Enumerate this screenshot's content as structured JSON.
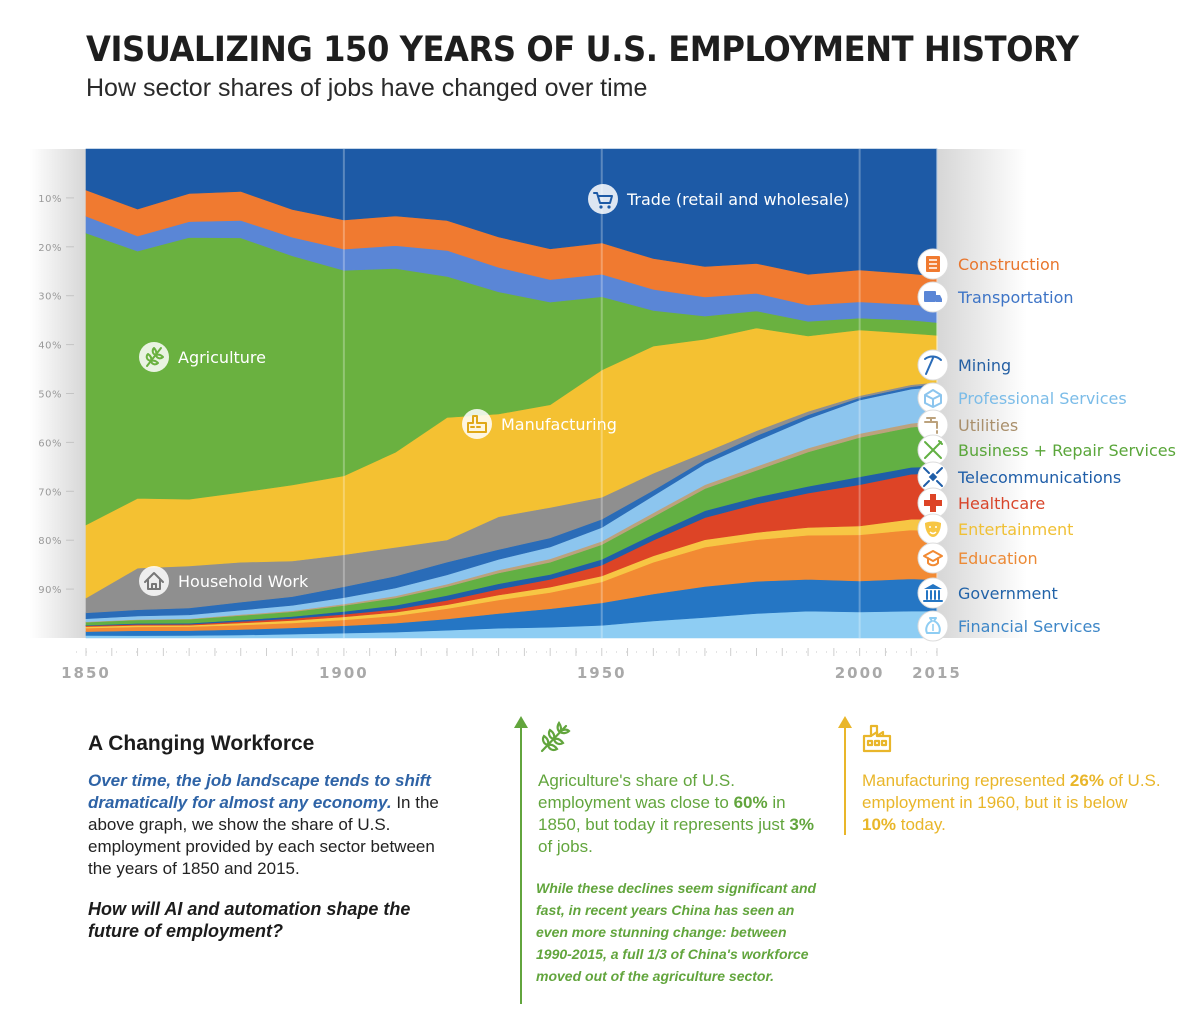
{
  "header": {
    "title": "VISUALIZING 150 YEARS OF U.S. EMPLOYMENT HISTORY",
    "subtitle": "How sector shares of jobs have changed over time"
  },
  "chart_data": {
    "type": "area",
    "stacked": true,
    "normalized_percent": true,
    "x": [
      1850,
      1860,
      1870,
      1880,
      1890,
      1900,
      1910,
      1920,
      1930,
      1940,
      1950,
      1960,
      1970,
      1980,
      1990,
      2000,
      2010,
      2015
    ],
    "x_ticks": [
      "1850",
      "1900",
      "1950",
      "2000",
      "2015"
    ],
    "y_ticks": [
      "10%",
      "20%",
      "30%",
      "40%",
      "50%",
      "60%",
      "70%",
      "80%",
      "90%"
    ],
    "ylim": [
      0,
      100
    ],
    "y_axis_direction": "down",
    "stack_order": "bottom-up",
    "series": [
      {
        "name": "Financial Services",
        "color": "#8ecdf3",
        "values": [
          0.5,
          0.5,
          0.5,
          0.6,
          0.8,
          1.0,
          1.2,
          1.6,
          2.0,
          2.2,
          2.6,
          3.5,
          4.2,
          5.0,
          5.5,
          5.3,
          5.5,
          5.5
        ]
      },
      {
        "name": "Government",
        "color": "#2576c4",
        "values": [
          0.8,
          1.0,
          1.0,
          1.1,
          1.3,
          1.5,
          1.8,
          2.3,
          3.0,
          3.8,
          4.6,
          5.5,
          6.3,
          6.6,
          6.5,
          6.3,
          6.6,
          6.4
        ]
      },
      {
        "name": "Education",
        "color": "#f28a33",
        "values": [
          0.7,
          0.8,
          0.8,
          0.9,
          1.0,
          1.2,
          1.5,
          2.1,
          2.8,
          3.3,
          4.3,
          6.5,
          8.0,
          8.5,
          9.0,
          9.4,
          10.0,
          10.0
        ]
      },
      {
        "name": "Entertainment",
        "color": "#f7c644",
        "values": [
          0.3,
          0.3,
          0.3,
          0.4,
          0.5,
          0.6,
          0.7,
          0.8,
          1.0,
          1.1,
          1.2,
          1.3,
          1.5,
          1.5,
          1.6,
          1.8,
          2.2,
          2.4
        ]
      },
      {
        "name": "Healthcare",
        "color": "#dd4426",
        "values": [
          0.2,
          0.2,
          0.2,
          0.3,
          0.4,
          0.5,
          0.6,
          0.9,
          1.2,
          1.6,
          2.2,
          3.2,
          4.5,
          5.8,
          7.0,
          8.4,
          9.2,
          9.4
        ]
      },
      {
        "name": "Telecommunications",
        "color": "#1f5ea8",
        "values": [
          0.1,
          0.2,
          0.2,
          0.3,
          0.4,
          0.6,
          0.8,
          1.0,
          1.1,
          1.0,
          1.2,
          1.2,
          1.4,
          1.4,
          1.4,
          1.6,
          1.4,
          1.4
        ]
      },
      {
        "name": "Business + Repair Services",
        "color": "#62b043",
        "values": [
          0.6,
          0.7,
          0.8,
          0.9,
          1.0,
          1.2,
          1.5,
          1.8,
          2.2,
          2.5,
          3.0,
          3.6,
          4.5,
          5.5,
          7.0,
          8.0,
          8.2,
          8.5
        ]
      },
      {
        "name": "Utilities",
        "color": "#bca27d",
        "values": [
          0.1,
          0.1,
          0.1,
          0.2,
          0.2,
          0.3,
          0.4,
          0.5,
          0.6,
          0.7,
          0.7,
          0.8,
          0.8,
          0.8,
          0.8,
          0.8,
          0.8,
          0.8
        ]
      },
      {
        "name": "Professional Services",
        "color": "#8cc5ee",
        "values": [
          0.6,
          0.7,
          0.8,
          0.9,
          1.1,
          1.3,
          1.6,
          1.9,
          2.2,
          2.4,
          2.8,
          3.5,
          4.2,
          5.2,
          6.0,
          6.8,
          7.0,
          7.0
        ]
      },
      {
        "name": "Mining",
        "color": "#2a6cb8",
        "values": [
          1.2,
          1.3,
          1.4,
          1.6,
          1.8,
          2.2,
          2.4,
          2.6,
          2.0,
          1.9,
          1.7,
          1.1,
          0.9,
          1.1,
          0.8,
          0.5,
          0.5,
          0.6
        ]
      },
      {
        "name": "Household Work",
        "color": "#8f8f8f",
        "values": [
          3.0,
          8.5,
          8.5,
          8.0,
          7.3,
          6.5,
          5.8,
          4.5,
          6.7,
          6.2,
          4.5,
          3.5,
          1.5,
          1.0,
          0.7,
          0.4,
          0.4,
          0.3
        ]
      },
      {
        "name": "Manufacturing",
        "color": "#f4c132",
        "values": [
          14.8,
          14.3,
          13.5,
          14.0,
          15.6,
          16.0,
          19.2,
          25.0,
          21.0,
          21.0,
          26.0,
          26.0,
          23.0,
          21.0,
          15.4,
          13.4,
          10.5,
          9.6
        ]
      },
      {
        "name": "Agriculture",
        "color": "#6ab140",
        "values": [
          59.1,
          50.6,
          53.0,
          51.0,
          47.0,
          41.7,
          37.1,
          28.8,
          25.0,
          21.0,
          15.0,
          7.3,
          4.7,
          3.5,
          3.0,
          2.4,
          2.7,
          2.6
        ]
      },
      {
        "name": "Transportation",
        "color": "#5a86d6",
        "values": [
          3.4,
          3.1,
          3.2,
          3.5,
          3.8,
          4.3,
          4.6,
          5.3,
          5.0,
          4.6,
          4.6,
          4.3,
          3.9,
          3.6,
          3.3,
          3.3,
          3.2,
          3.3
        ]
      },
      {
        "name": "Construction",
        "color": "#f07a30",
        "values": [
          5.3,
          5.5,
          5.7,
          5.8,
          5.7,
          5.9,
          6.0,
          6.1,
          6.2,
          6.3,
          6.4,
          6.3,
          6.2,
          6.1,
          6.3,
          6.5,
          6.3,
          6.2
        ]
      },
      {
        "name": "Trade (retail and wholesale)",
        "color": "#1d5aa6",
        "values": [
          8.3,
          12.3,
          9.0,
          8.5,
          12.4,
          14.4,
          13.5,
          14.6,
          18.0,
          20.4,
          19.2,
          22.4,
          23.9,
          23.4,
          25.6,
          24.6,
          25.5,
          26.0
        ]
      }
    ],
    "in_chart_labels": [
      "Trade (retail and wholesale)",
      "Agriculture",
      "Manufacturing",
      "Household Work"
    ],
    "legend_right": [
      "Construction",
      "Transportation",
      "Mining",
      "Professional Services",
      "Utilities",
      "Business + Repair Services",
      "Telecommunications",
      "Healthcare",
      "Entertainment",
      "Education",
      "Government",
      "Financial Services"
    ],
    "legend_placement": "right",
    "grid": true
  },
  "article": {
    "heading": "A Changing Workforce",
    "lead_highlight": "Over time, the job landscape tends to shift dramatically for almost any economy.",
    "lead_rest": " In the above graph, we show the share of U.S. employment provided by each sector between the years of 1850 and 2015.",
    "question": "How will AI and automation shape the future of employment?"
  },
  "callout_agriculture": {
    "icon": "wheat-icon",
    "color": "#62a53d",
    "t1": "Agriculture's share of U.S. employment was close to ",
    "v1": "60%",
    "t2": " in 1850, but today it represents just ",
    "v2": "3%",
    "t3": " of jobs.",
    "note": "While these declines seem significant and fast, in recent years China has seen an even more stunning change: between 1990-2015, a full 1/3 of China's workforce moved out of the agriculture sector."
  },
  "callout_manufacturing": {
    "icon": "factory-icon",
    "color": "#e9b62a",
    "t1": "Manufacturing represented ",
    "v1": "26%",
    "t2": " of U.S. employment in 1960, but it is below ",
    "v2": "10%",
    "t3": " today."
  }
}
